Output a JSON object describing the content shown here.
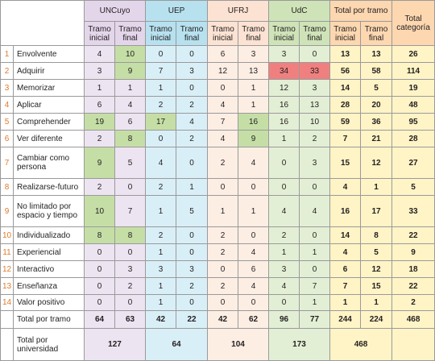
{
  "headers": {
    "groups": [
      "UNCuyo",
      "UEP",
      "UFRJ",
      "UdC",
      "Total por tramo"
    ],
    "total_categoria": "Total categoría",
    "sub": [
      "Tramo inicial",
      "Tramo final"
    ]
  },
  "rows": [
    {
      "n": "1",
      "label": "Envolvente",
      "vals": [
        "4",
        "10",
        "0",
        "0",
        "6",
        "3",
        "3",
        "0",
        "13",
        "13",
        "26"
      ],
      "green": [
        1
      ],
      "red": []
    },
    {
      "n": "2",
      "label": "Adquirir",
      "vals": [
        "3",
        "9",
        "7",
        "3",
        "12",
        "13",
        "34",
        "33",
        "56",
        "58",
        "114"
      ],
      "green": [
        1
      ],
      "red": [
        6,
        7
      ]
    },
    {
      "n": "3",
      "label": "Memorizar",
      "vals": [
        "1",
        "1",
        "1",
        "0",
        "0",
        "1",
        "12",
        "3",
        "14",
        "5",
        "19"
      ],
      "green": [],
      "red": []
    },
    {
      "n": "4",
      "label": "Aplicar",
      "vals": [
        "6",
        "4",
        "2",
        "2",
        "4",
        "1",
        "16",
        "13",
        "28",
        "20",
        "48"
      ],
      "green": [],
      "red": []
    },
    {
      "n": "5",
      "label": "Comprehender",
      "vals": [
        "19",
        "6",
        "17",
        "4",
        "7",
        "16",
        "16",
        "10",
        "59",
        "36",
        "95"
      ],
      "green": [
        0,
        2,
        5
      ],
      "red": []
    },
    {
      "n": "6",
      "label": "Ver diferente",
      "vals": [
        "2",
        "8",
        "0",
        "2",
        "4",
        "9",
        "1",
        "2",
        "7",
        "21",
        "28"
      ],
      "green": [
        1,
        5
      ],
      "red": []
    },
    {
      "n": "7",
      "label": "Cambiar como persona",
      "vals": [
        "9",
        "5",
        "4",
        "0",
        "2",
        "4",
        "0",
        "3",
        "15",
        "12",
        "27"
      ],
      "green": [
        0
      ],
      "red": []
    },
    {
      "n": "8",
      "label": "Realizarse-futuro",
      "vals": [
        "2",
        "0",
        "2",
        "1",
        "0",
        "0",
        "0",
        "0",
        "4",
        "1",
        "5"
      ],
      "green": [],
      "red": []
    },
    {
      "n": "9",
      "label": "No limitado por espacio y tiempo",
      "vals": [
        "10",
        "7",
        "1",
        "5",
        "1",
        "1",
        "4",
        "4",
        "16",
        "17",
        "33"
      ],
      "green": [
        0
      ],
      "red": []
    },
    {
      "n": "10",
      "label": "Individualizado",
      "vals": [
        "8",
        "8",
        "2",
        "0",
        "2",
        "0",
        "2",
        "0",
        "14",
        "8",
        "22"
      ],
      "green": [
        0,
        1
      ],
      "red": []
    },
    {
      "n": "11",
      "label": "Experiencial",
      "vals": [
        "0",
        "0",
        "1",
        "0",
        "2",
        "4",
        "1",
        "1",
        "4",
        "5",
        "9"
      ],
      "green": [],
      "red": []
    },
    {
      "n": "12",
      "label": "Interactivo",
      "vals": [
        "0",
        "3",
        "3",
        "3",
        "0",
        "6",
        "3",
        "0",
        "6",
        "12",
        "18"
      ],
      "green": [],
      "red": []
    },
    {
      "n": "13",
      "label": "Enseñanza",
      "vals": [
        "0",
        "2",
        "1",
        "2",
        "2",
        "4",
        "4",
        "7",
        "7",
        "15",
        "22"
      ],
      "green": [],
      "red": []
    },
    {
      "n": "14",
      "label": "Valor positivo",
      "vals": [
        "0",
        "0",
        "1",
        "0",
        "0",
        "0",
        "0",
        "1",
        "1",
        "1",
        "2"
      ],
      "green": [],
      "red": []
    }
  ],
  "total_tramo": {
    "label": "Total por tramo",
    "vals": [
      "64",
      "63",
      "42",
      "22",
      "42",
      "62",
      "96",
      "77",
      "244",
      "224",
      "468"
    ]
  },
  "total_universidad": {
    "label": "Total por universidad",
    "vals": [
      "127",
      "64",
      "104",
      "173",
      "468"
    ]
  }
}
